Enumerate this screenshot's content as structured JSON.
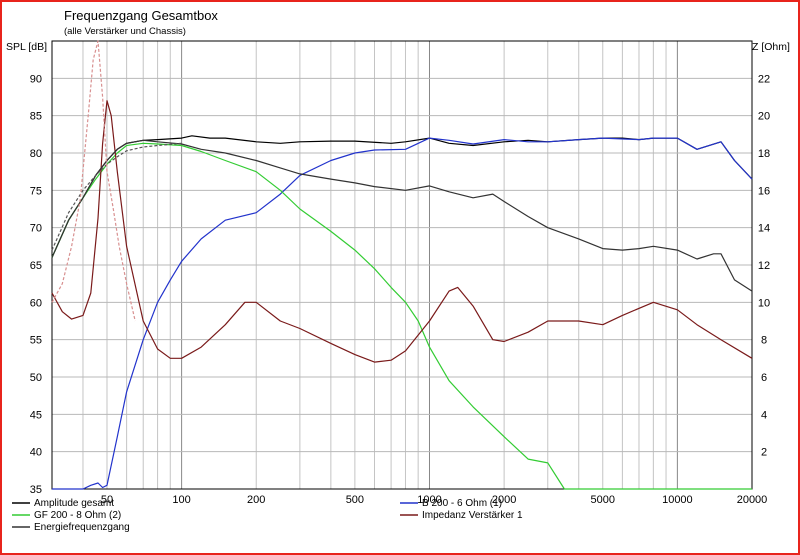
{
  "chart_data": {
    "type": "line",
    "title": "Frequenzgang Gesamtbox",
    "subtitle": "(alle Verstärker und Chassis)",
    "y_left_label": "SPL [dB]",
    "y_right_label": "Z [Ohm]",
    "x_scale": "log",
    "xlim": [
      30,
      20000
    ],
    "ylim_left": [
      35,
      95
    ],
    "ylim_right": [
      0,
      24
    ],
    "grid": true,
    "x_ticks": [
      {
        "v": 50,
        "label": "50"
      },
      {
        "v": 100,
        "label": "100"
      },
      {
        "v": 200,
        "label": "200"
      },
      {
        "v": 500,
        "label": "500"
      },
      {
        "v": 1000,
        "label": "1000"
      },
      {
        "v": 2000,
        "label": "2000"
      },
      {
        "v": 5000,
        "label": "5000"
      },
      {
        "v": 10000,
        "label": "10000"
      },
      {
        "v": 20000,
        "label": "20000"
      }
    ],
    "y_left_ticks": [
      35,
      40,
      45,
      50,
      55,
      60,
      65,
      70,
      75,
      80,
      85,
      90
    ],
    "y_right_ticks": [
      2,
      4,
      6,
      8,
      10,
      12,
      14,
      16,
      18,
      20,
      22
    ],
    "series": [
      {
        "name": "Amplitude gesamt",
        "axis": "left",
        "color": "#000000",
        "dash": "",
        "points": [
          [
            30,
            66
          ],
          [
            35,
            71
          ],
          [
            40,
            74
          ],
          [
            45,
            77
          ],
          [
            50,
            79
          ],
          [
            55,
            80.5
          ],
          [
            60,
            81.3
          ],
          [
            70,
            81.7
          ],
          [
            80,
            81.8
          ],
          [
            100,
            82
          ],
          [
            110,
            82.3
          ],
          [
            130,
            82
          ],
          [
            150,
            82
          ],
          [
            200,
            81.5
          ],
          [
            250,
            81.3
          ],
          [
            300,
            81.5
          ],
          [
            400,
            81.6
          ],
          [
            500,
            81.6
          ],
          [
            700,
            81.3
          ],
          [
            800,
            81.5
          ],
          [
            1000,
            82
          ],
          [
            1200,
            81.3
          ],
          [
            1500,
            81
          ],
          [
            2000,
            81.5
          ],
          [
            2500,
            81.7
          ],
          [
            3000,
            81.5
          ],
          [
            4000,
            81.8
          ],
          [
            5000,
            82
          ],
          [
            6000,
            82
          ],
          [
            7000,
            81.8
          ],
          [
            8000,
            82
          ],
          [
            10000,
            82
          ],
          [
            12000,
            80.5
          ],
          [
            15000,
            81.5
          ],
          [
            17000,
            79
          ],
          [
            20000,
            76.5
          ]
        ]
      },
      {
        "name": "B 200 - 6 Ohm (1)",
        "axis": "left",
        "color": "#2233cc",
        "dash": "",
        "points": [
          [
            30,
            35
          ],
          [
            40,
            35
          ],
          [
            43,
            35.5
          ],
          [
            46,
            35.8
          ],
          [
            48,
            35.2
          ],
          [
            50,
            35.5
          ],
          [
            55,
            42
          ],
          [
            60,
            48
          ],
          [
            70,
            55
          ],
          [
            80,
            60
          ],
          [
            90,
            63
          ],
          [
            100,
            65.5
          ],
          [
            120,
            68.5
          ],
          [
            150,
            71
          ],
          [
            200,
            72
          ],
          [
            250,
            74.5
          ],
          [
            300,
            77
          ],
          [
            400,
            79
          ],
          [
            500,
            80
          ],
          [
            600,
            80.4
          ],
          [
            800,
            80.5
          ],
          [
            1000,
            82
          ],
          [
            1200,
            81.7
          ],
          [
            1500,
            81.2
          ],
          [
            2000,
            81.8
          ],
          [
            2500,
            81.5
          ],
          [
            3000,
            81.5
          ],
          [
            4000,
            81.8
          ],
          [
            5000,
            82
          ],
          [
            7000,
            81.8
          ],
          [
            8000,
            82
          ],
          [
            10000,
            82
          ],
          [
            12000,
            80.5
          ],
          [
            15000,
            81.5
          ],
          [
            17000,
            79
          ],
          [
            20000,
            76.5
          ]
        ]
      },
      {
        "name": "GF 200 - 8 Ohm (2)",
        "axis": "left",
        "color": "#33cc33",
        "dash": "",
        "points": [
          [
            30,
            66
          ],
          [
            35,
            71
          ],
          [
            40,
            74
          ],
          [
            45,
            76.5
          ],
          [
            50,
            78.5
          ],
          [
            55,
            80
          ],
          [
            60,
            81
          ],
          [
            70,
            81.3
          ],
          [
            80,
            81.2
          ],
          [
            100,
            81
          ],
          [
            120,
            80.2
          ],
          [
            150,
            79
          ],
          [
            200,
            77.5
          ],
          [
            250,
            75
          ],
          [
            300,
            72.5
          ],
          [
            400,
            69.5
          ],
          [
            500,
            67
          ],
          [
            600,
            64.5
          ],
          [
            700,
            62
          ],
          [
            800,
            60
          ],
          [
            900,
            57.5
          ],
          [
            1000,
            54
          ],
          [
            1200,
            49.5
          ],
          [
            1500,
            46
          ],
          [
            2000,
            42
          ],
          [
            2500,
            39
          ],
          [
            3000,
            38.5
          ],
          [
            3500,
            35
          ],
          [
            4000,
            35
          ],
          [
            10000,
            35
          ],
          [
            20000,
            35
          ]
        ]
      },
      {
        "name": "Impedanz Verstärker 1",
        "axis": "right",
        "color": "#7a1a1a",
        "dash": "",
        "points": [
          [
            30,
            10.5
          ],
          [
            33,
            9.5
          ],
          [
            36,
            9.1
          ],
          [
            40,
            9.3
          ],
          [
            43,
            10.5
          ],
          [
            46,
            14.5
          ],
          [
            48,
            18.5
          ],
          [
            50,
            20.8
          ],
          [
            52,
            20
          ],
          [
            55,
            17
          ],
          [
            60,
            13
          ],
          [
            70,
            9
          ],
          [
            80,
            7.5
          ],
          [
            90,
            7
          ],
          [
            100,
            7
          ],
          [
            120,
            7.6
          ],
          [
            150,
            8.8
          ],
          [
            180,
            10
          ],
          [
            200,
            10
          ],
          [
            250,
            9
          ],
          [
            300,
            8.6
          ],
          [
            400,
            7.8
          ],
          [
            500,
            7.2
          ],
          [
            600,
            6.8
          ],
          [
            700,
            6.9
          ],
          [
            800,
            7.4
          ],
          [
            1000,
            9
          ],
          [
            1200,
            10.6
          ],
          [
            1300,
            10.8
          ],
          [
            1500,
            9.8
          ],
          [
            1800,
            8
          ],
          [
            2000,
            7.9
          ],
          [
            2500,
            8.4
          ],
          [
            3000,
            9
          ],
          [
            4000,
            9
          ],
          [
            5000,
            8.8
          ],
          [
            6000,
            9.3
          ],
          [
            8000,
            10
          ],
          [
            10000,
            9.6
          ],
          [
            12000,
            8.8
          ],
          [
            15000,
            8
          ],
          [
            20000,
            7
          ]
        ]
      },
      {
        "name": "Energiefrequenzgang",
        "axis": "left",
        "color": "#333333",
        "dash": "",
        "points": [
          [
            30,
            66
          ],
          [
            35,
            71
          ],
          [
            40,
            74
          ],
          [
            45,
            77
          ],
          [
            50,
            79
          ],
          [
            55,
            80.5
          ],
          [
            60,
            81.3
          ],
          [
            70,
            81.7
          ],
          [
            80,
            81.5
          ],
          [
            100,
            81.2
          ],
          [
            120,
            80.5
          ],
          [
            150,
            80
          ],
          [
            200,
            79
          ],
          [
            250,
            78
          ],
          [
            300,
            77.2
          ],
          [
            400,
            76.5
          ],
          [
            500,
            76
          ],
          [
            600,
            75.5
          ],
          [
            800,
            75
          ],
          [
            1000,
            75.6
          ],
          [
            1200,
            74.8
          ],
          [
            1500,
            74
          ],
          [
            1800,
            74.5
          ],
          [
            2000,
            73.5
          ],
          [
            2500,
            71.5
          ],
          [
            3000,
            70
          ],
          [
            4000,
            68.5
          ],
          [
            5000,
            67.2
          ],
          [
            6000,
            67
          ],
          [
            7000,
            67.2
          ],
          [
            8000,
            67.5
          ],
          [
            10000,
            67
          ],
          [
            12000,
            65.8
          ],
          [
            14000,
            66.5
          ],
          [
            15000,
            66.5
          ],
          [
            17000,
            63
          ],
          [
            20000,
            61.5
          ]
        ]
      },
      {
        "name": "",
        "axis": "left",
        "color": "#555555",
        "dash": "3,2",
        "points": [
          [
            30,
            67
          ],
          [
            35,
            72
          ],
          [
            40,
            75
          ],
          [
            45,
            77
          ],
          [
            50,
            78.5
          ],
          [
            55,
            79.5
          ],
          [
            60,
            80.3
          ],
          [
            70,
            80.8
          ],
          [
            80,
            81
          ],
          [
            100,
            81.3
          ]
        ]
      },
      {
        "name": "",
        "axis": "right",
        "color": "#d89090",
        "dash": "3,2",
        "points": [
          [
            30,
            10
          ],
          [
            33,
            11
          ],
          [
            36,
            13
          ],
          [
            39,
            15.5
          ],
          [
            42,
            20
          ],
          [
            44,
            23
          ],
          [
            46,
            24
          ],
          [
            48,
            21
          ],
          [
            50,
            17
          ],
          [
            53,
            15
          ],
          [
            56,
            13
          ],
          [
            60,
            11
          ],
          [
            65,
            9
          ]
        ]
      }
    ],
    "legend": {
      "placement": "bottom",
      "entries": [
        {
          "label": "Amplitude gesamt",
          "color": "#000000"
        },
        {
          "label": "B 200 - 6 Ohm (1)",
          "color": "#2233cc"
        },
        {
          "label": "GF 200 - 8 Ohm (2)",
          "color": "#33cc33"
        },
        {
          "label": "Impedanz Verstärker 1",
          "color": "#7a1a1a"
        },
        {
          "label": "Energiefrequenzgang",
          "color": "#333333"
        }
      ]
    }
  }
}
